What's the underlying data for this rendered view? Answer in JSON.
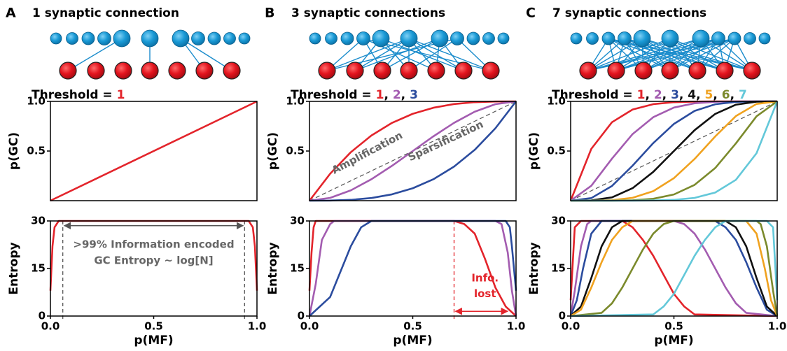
{
  "figure": {
    "panels": [
      {
        "letter": "A",
        "title": "1  synaptic connection"
      },
      {
        "letter": "B",
        "title": "3 synaptic connections"
      },
      {
        "letter": "C",
        "title": "7 synaptic connections"
      }
    ]
  },
  "chart_data": [
    {
      "type": "line",
      "ylabel": "p(GC)",
      "legend_title": "Threshold = ",
      "legend_separator": ", ",
      "xlim": [
        0,
        1
      ],
      "ylim": [
        0,
        1
      ],
      "yticks": [
        0.5,
        {
          "value": 1,
          "label": "1.0"
        }
      ],
      "reference": {
        "x": [
          0,
          1
        ],
        "values": [
          0,
          1
        ]
      },
      "series": [
        {
          "name": "1",
          "color": "#e3242b",
          "x": [
            0,
            1
          ],
          "values": [
            0,
            1
          ]
        }
      ]
    },
    {
      "type": "line",
      "ylabel": "Entropy",
      "xlabel": "p(MF)",
      "xlim": [
        0,
        1
      ],
      "ylim": [
        0,
        30
      ],
      "xticks": [
        {
          "value": 0,
          "label": "0.0"
        },
        0.5,
        {
          "value": 1,
          "label": "1.0"
        }
      ],
      "yticks": [
        0,
        15,
        30
      ],
      "vlines": [
        0.06,
        0.94
      ],
      "vline_color": "#555555",
      "annotations": [
        ">99% Information encoded",
        "GC Entropy ~ log[N]"
      ],
      "annotation_color": "#666666",
      "series": [
        {
          "color": "#e3242b",
          "x": [
            0,
            0.01,
            0.02,
            0.04,
            0.96,
            0.98,
            0.99,
            1
          ],
          "values": [
            8,
            22,
            28,
            30,
            30,
            28,
            22,
            8
          ]
        }
      ]
    },
    {
      "type": "line",
      "ylabel": "p(GC)",
      "legend_title": "Threshold = ",
      "legend_separator": ", ",
      "xlim": [
        0,
        1
      ],
      "ylim": [
        0,
        1
      ],
      "yticks": [
        0.5,
        {
          "value": 1,
          "label": "1.0"
        }
      ],
      "reference": {
        "x": [
          0,
          1
        ],
        "values": [
          0,
          1
        ]
      },
      "annotations": [
        "Amplification",
        "Sparsification"
      ],
      "annotation_color": "#666666",
      "x": [
        0,
        0.1,
        0.2,
        0.3,
        0.4,
        0.5,
        0.6,
        0.7,
        0.8,
        0.9,
        1
      ],
      "series": [
        {
          "name": "1",
          "color": "#e3242b",
          "values": [
            0,
            0.271,
            0.488,
            0.657,
            0.784,
            0.875,
            0.936,
            0.973,
            0.992,
            0.999,
            1
          ]
        },
        {
          "name": "2",
          "color": "#a35cb0",
          "values": [
            0,
            0.028,
            0.104,
            0.216,
            0.352,
            0.5,
            0.648,
            0.784,
            0.896,
            0.972,
            1
          ]
        },
        {
          "name": "3",
          "color": "#2b4c9e",
          "values": [
            0,
            0.001,
            0.008,
            0.027,
            0.064,
            0.125,
            0.216,
            0.343,
            0.512,
            0.729,
            1
          ]
        }
      ]
    },
    {
      "type": "line",
      "ylabel": "Entropy",
      "xlabel": "p(MF)",
      "xlim": [
        0,
        1
      ],
      "ylim": [
        0,
        30
      ],
      "xticks": [
        {
          "value": 0,
          "label": "0.0"
        },
        0.5,
        {
          "value": 1,
          "label": "1.0"
        }
      ],
      "yticks": [
        0,
        15,
        30
      ],
      "vlines": [
        0.7
      ],
      "vline_color": "#e3242b",
      "annotations": [
        "Info.",
        "lost"
      ],
      "annotation_color": "#e3242b",
      "series": [
        {
          "color": "#e3242b",
          "x": [
            0,
            0.01,
            0.02,
            0.03,
            0.7,
            0.75,
            0.8,
            0.85,
            0.9,
            0.95,
            1
          ],
          "values": [
            8,
            20,
            28,
            30,
            30,
            29,
            26,
            18,
            9,
            3,
            0
          ]
        },
        {
          "color": "#a35cb0",
          "x": [
            0,
            0.03,
            0.06,
            0.1,
            0.12,
            0.9,
            0.93,
            0.96,
            0.98,
            1
          ],
          "values": [
            0,
            10,
            24,
            29,
            30,
            30,
            29,
            20,
            8,
            0
          ]
        },
        {
          "color": "#2b4c9e",
          "x": [
            0,
            0.1,
            0.15,
            0.2,
            0.25,
            0.3,
            0.95,
            0.97,
            0.98,
            0.99,
            1
          ],
          "values": [
            0,
            6,
            14,
            22,
            28,
            30,
            30,
            28,
            22,
            15,
            8
          ]
        }
      ]
    },
    {
      "type": "line",
      "ylabel": "p(GC)",
      "legend_title": "Threshold = ",
      "legend_separator": ", ",
      "xlim": [
        0,
        1
      ],
      "ylim": [
        0,
        1
      ],
      "yticks": [
        0.5,
        {
          "value": 1,
          "label": "1.0"
        }
      ],
      "reference": {
        "x": [
          0,
          1
        ],
        "values": [
          0,
          1
        ]
      },
      "x": [
        0,
        0.1,
        0.2,
        0.3,
        0.4,
        0.5,
        0.6,
        0.7,
        0.8,
        0.9,
        1
      ],
      "series": [
        {
          "name": "1",
          "color": "#e3242b",
          "values": [
            0,
            0.522,
            0.79,
            0.918,
            0.972,
            0.992,
            0.998,
            1,
            1,
            1,
            1
          ]
        },
        {
          "name": "2",
          "color": "#a35cb0",
          "values": [
            0,
            0.15,
            0.423,
            0.671,
            0.841,
            0.938,
            0.981,
            0.996,
            1,
            1,
            1
          ]
        },
        {
          "name": "3",
          "color": "#2b4c9e",
          "values": [
            0,
            0.026,
            0.148,
            0.353,
            0.58,
            0.773,
            0.904,
            0.971,
            0.995,
            1,
            1
          ]
        },
        {
          "name": "4",
          "color": "#111111",
          "values": [
            0,
            0.003,
            0.033,
            0.126,
            0.29,
            0.5,
            0.71,
            0.874,
            0.967,
            0.997,
            1
          ]
        },
        {
          "name": "5",
          "color": "#f0a21f",
          "values": [
            0,
            0,
            0.005,
            0.029,
            0.096,
            0.227,
            0.42,
            0.647,
            0.852,
            0.974,
            1
          ]
        },
        {
          "name": "6",
          "color": "#7b8a2c",
          "values": [
            0,
            0,
            0,
            0.004,
            0.019,
            0.0625,
            0.159,
            0.329,
            0.577,
            0.85,
            1
          ]
        },
        {
          "name": "7",
          "color": "#63c8d9",
          "values": [
            0,
            0,
            0,
            0,
            0.002,
            0.008,
            0.028,
            0.082,
            0.21,
            0.478,
            1
          ]
        }
      ]
    },
    {
      "type": "line",
      "ylabel": "Entropy",
      "xlabel": "p(MF)",
      "xlim": [
        0,
        1
      ],
      "ylim": [
        0,
        30
      ],
      "xticks": [
        {
          "value": 0,
          "label": "0.0"
        },
        0.5,
        {
          "value": 1,
          "label": "1.0"
        }
      ],
      "yticks": [
        0,
        15,
        30
      ],
      "series": [
        {
          "color": "#e3242b",
          "x": [
            0,
            0.02,
            0.05,
            0.25,
            0.3,
            0.35,
            0.4,
            0.45,
            0.5,
            0.55,
            0.6,
            1
          ],
          "values": [
            5,
            28,
            30,
            30,
            28,
            24,
            19,
            13,
            7,
            3,
            0.5,
            0
          ]
        },
        {
          "color": "#a35cb0",
          "x": [
            0,
            0.02,
            0.05,
            0.08,
            0.1,
            0.5,
            0.55,
            0.6,
            0.65,
            0.7,
            0.75,
            0.8,
            0.85,
            1
          ],
          "values": [
            0,
            8,
            22,
            29,
            30,
            30,
            29,
            26,
            21,
            15,
            9,
            4,
            1,
            0
          ]
        },
        {
          "color": "#2b4c9e",
          "x": [
            0,
            0.03,
            0.06,
            0.1,
            0.15,
            0.7,
            0.75,
            0.8,
            0.85,
            0.9,
            0.95,
            1
          ],
          "values": [
            0,
            5,
            15,
            26,
            30,
            30,
            28,
            24,
            17,
            9,
            2,
            0
          ]
        },
        {
          "color": "#111111",
          "x": [
            0,
            0.05,
            0.1,
            0.15,
            0.2,
            0.25,
            0.75,
            0.8,
            0.85,
            0.9,
            0.95,
            1
          ],
          "values": [
            0,
            3,
            12,
            22,
            28,
            30,
            30,
            28,
            22,
            12,
            3,
            0
          ]
        },
        {
          "color": "#f0a21f",
          "x": [
            0,
            0.05,
            0.1,
            0.15,
            0.2,
            0.25,
            0.3,
            0.85,
            0.9,
            0.94,
            0.97,
            1
          ],
          "values": [
            0,
            2,
            9,
            17,
            24,
            28,
            30,
            30,
            26,
            15,
            5,
            0
          ]
        },
        {
          "color": "#7b8a2c",
          "x": [
            0,
            0.15,
            0.2,
            0.25,
            0.3,
            0.35,
            0.4,
            0.45,
            0.5,
            0.9,
            0.92,
            0.95,
            0.98,
            1
          ],
          "values": [
            0,
            1,
            4,
            9,
            15,
            21,
            26,
            29,
            30,
            30,
            29,
            22,
            8,
            0
          ]
        },
        {
          "color": "#63c8d9",
          "x": [
            0,
            0.4,
            0.45,
            0.5,
            0.55,
            0.6,
            0.65,
            0.7,
            0.75,
            0.95,
            0.98,
            1
          ],
          "values": [
            0,
            0.5,
            3,
            7,
            13,
            19,
            24,
            28,
            30,
            30,
            28,
            5
          ]
        }
      ]
    }
  ]
}
